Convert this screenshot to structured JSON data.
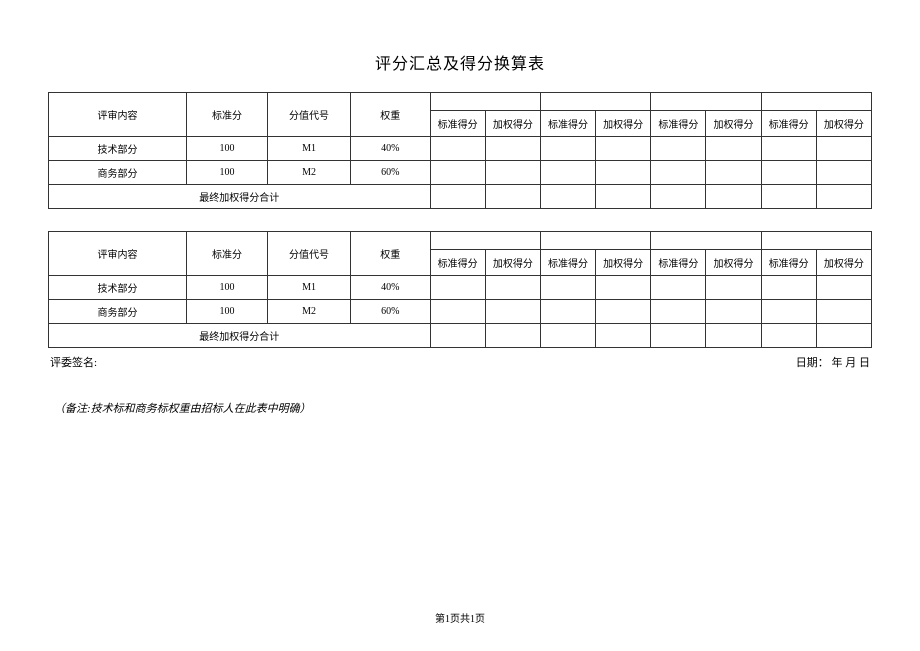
{
  "title": "评分汇总及得分换算表",
  "table": {
    "header": {
      "content": "评审内容",
      "std": "标准分",
      "code": "分值代号",
      "weight": "权重",
      "std_score": "标准得分",
      "weighted_score": "加权得分"
    },
    "rows": [
      {
        "content": "技术部分",
        "std": "100",
        "code": "M1",
        "weight": "40%"
      },
      {
        "content": "商务部分",
        "std": "100",
        "code": "M2",
        "weight": "60%"
      }
    ],
    "total_label": "最终加权得分合计"
  },
  "signature": {
    "left": "评委签名:",
    "right": "日期：  年  月  日"
  },
  "note": "（备注:技术标和商务标权重由招标人在此表中明确）",
  "pager": "第1页共1页"
}
